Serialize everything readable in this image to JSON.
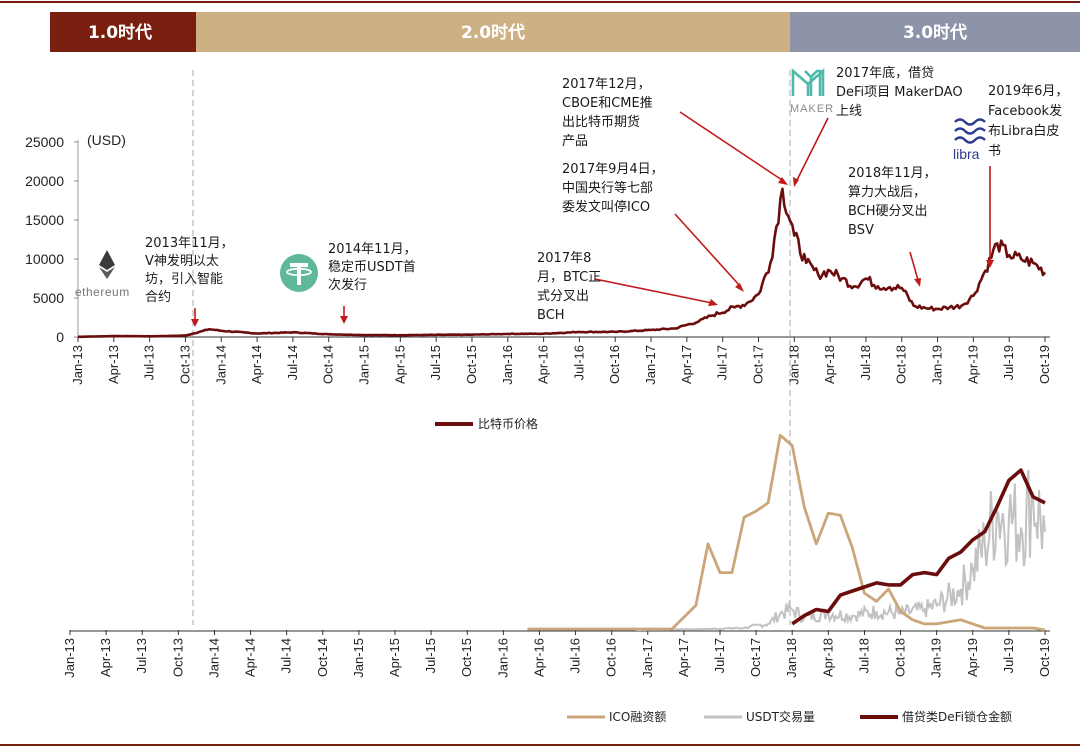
{
  "eras": [
    {
      "label": "1.0时代",
      "start": "2013-01",
      "end": "2013-11",
      "color": "#7a1f0f"
    },
    {
      "label": "2.0时代",
      "start": "2013-11",
      "end": "2018-01",
      "color": "#cdb083"
    },
    {
      "label": "3.0时代",
      "start": "2018-01",
      "end": "2019-10",
      "color": "#8d93a8"
    }
  ],
  "colors": {
    "bitcoin": "#6b0d0d",
    "ico": "#caa679",
    "usdt": "#c2c2c2",
    "defi": "#6b0d0d",
    "annotation_arrow": "#c01a1a",
    "divider": "#b0b0b0",
    "tether": "#5fb898",
    "maker": "#4fb8aa",
    "libra": "#2b3c8f",
    "border": "#7a1f0f"
  },
  "icons": {
    "ethereum": "ethereum-icon",
    "tether": "tether-icon",
    "maker": "maker-icon",
    "libra": "libra-icon"
  },
  "logo_text": {
    "ethereum": "ethereum",
    "maker": "MAKER",
    "libra": "libra"
  },
  "annotations": [
    {
      "date": "2013-11",
      "lines": [
        "2013年11月，",
        "V神发明以太",
        "坊，引入智能",
        "合约"
      ]
    },
    {
      "date": "2014-11",
      "lines": [
        "2014年11月，",
        "稳定币USDT首",
        "次发行"
      ]
    },
    {
      "date": "2017-08",
      "lines": [
        "2017年8",
        "月，BTC正",
        "式分叉出",
        "BCH"
      ]
    },
    {
      "date": "2017-09",
      "lines": [
        "2017年9月4日，",
        "中国央行等七部",
        "委发文叫停ICO"
      ]
    },
    {
      "date": "2017-12",
      "lines": [
        "2017年12月，",
        "CBOE和CME推",
        "出比特币期货",
        "产品"
      ]
    },
    {
      "date": "2017-12",
      "lines": [
        "2017年底，借贷",
        "DeFi项目 MakerDAO",
        "上线"
      ]
    },
    {
      "date": "2018-11",
      "lines": [
        "2018年11月，",
        "算力大战后，",
        "BCH硬分叉出",
        "BSV"
      ]
    },
    {
      "date": "2019-06",
      "lines": [
        "2019年6月，",
        "Facebook发",
        "布Libra白皮",
        "书"
      ]
    }
  ],
  "chart_data": [
    {
      "type": "line",
      "ylabel": "(USD)",
      "ylim": [
        0,
        25000
      ],
      "yticks": [
        "0",
        "5000",
        "10000",
        "15000",
        "20000",
        "25000"
      ],
      "xticks": [
        "Jan-13",
        "Apr-13",
        "Jul-13",
        "Oct-13",
        "Jan-14",
        "Apr-14",
        "Jul-14",
        "Oct-14",
        "Jan-15",
        "Apr-15",
        "Jul-15",
        "Oct-15",
        "Jan-16",
        "Apr-16",
        "Jul-16",
        "Oct-16",
        "Jan-17",
        "Apr-17",
        "Jul-17",
        "Oct-17",
        "Jan-18",
        "Apr-18",
        "Jul-18",
        "Oct-18",
        "Jan-19",
        "Apr-19",
        "Jul-19",
        "Oct-19"
      ],
      "legend_position": "bottom",
      "series": [
        {
          "name": "比特币价格",
          "x": [
            "2013-01",
            "2013-04",
            "2013-07",
            "2013-10",
            "2013-12",
            "2014-01",
            "2014-04",
            "2014-07",
            "2014-10",
            "2015-01",
            "2015-04",
            "2015-07",
            "2015-10",
            "2016-01",
            "2016-04",
            "2016-07",
            "2016-10",
            "2017-01",
            "2017-03",
            "2017-05",
            "2017-06",
            "2017-08",
            "2017-09",
            "2017-10",
            "2017-11",
            "2017-12",
            "2018-01",
            "2018-02",
            "2018-03",
            "2018-04",
            "2018-05",
            "2018-06",
            "2018-07",
            "2018-08",
            "2018-09",
            "2018-10",
            "2018-11",
            "2018-12",
            "2019-01",
            "2019-02",
            "2019-03",
            "2019-04",
            "2019-05",
            "2019-06",
            "2019-07",
            "2019-08",
            "2019-09",
            "2019-10"
          ],
          "values": [
            20,
            120,
            90,
            180,
            1000,
            800,
            450,
            600,
            350,
            250,
            230,
            280,
            300,
            400,
            420,
            650,
            650,
            900,
            1100,
            2000,
            2700,
            3800,
            4300,
            5500,
            9500,
            19000,
            13000,
            9500,
            8000,
            8500,
            7500,
            6500,
            7500,
            6500,
            6400,
            6300,
            4000,
            3700,
            3600,
            3800,
            4000,
            5300,
            8500,
            12000,
            10500,
            10000,
            9500,
            8300
          ]
        }
      ]
    },
    {
      "type": "line",
      "xticks": [
        "Jan-13",
        "Apr-13",
        "Jul-13",
        "Oct-13",
        "Jan-14",
        "Apr-14",
        "Jul-14",
        "Oct-14",
        "Jan-15",
        "Apr-15",
        "Jul-15",
        "Oct-15",
        "Jan-16",
        "Apr-16",
        "Jul-16",
        "Oct-16",
        "Jan-17",
        "Apr-17",
        "Jul-17",
        "Oct-17",
        "Jan-18",
        "Apr-18",
        "Jul-18",
        "Oct-18",
        "Jan-19",
        "Apr-19",
        "Jul-19",
        "Oct-19"
      ],
      "legend_position": "bottom",
      "ylim": [
        0,
        100
      ],
      "series": [
        {
          "name": "ICO融资额",
          "x": [
            "2016-03",
            "2016-06",
            "2016-09",
            "2016-12",
            "2017-03",
            "2017-05",
            "2017-06",
            "2017-07",
            "2017-08",
            "2017-09",
            "2017-10",
            "2017-11",
            "2017-12",
            "2018-01",
            "2018-02",
            "2018-03",
            "2018-04",
            "2018-05",
            "2018-06",
            "2018-07",
            "2018-08",
            "2018-09",
            "2018-10",
            "2018-11",
            "2018-12",
            "2019-01",
            "2019-03",
            "2019-05",
            "2019-07",
            "2019-09",
            "2019-10"
          ],
          "values": [
            0.5,
            0.5,
            0.5,
            0.5,
            0.5,
            12,
            42,
            28,
            28,
            55,
            58,
            62,
            95,
            90,
            60,
            42,
            57,
            56,
            40,
            18,
            14,
            20,
            9,
            5,
            3,
            3,
            5,
            1,
            1,
            1,
            0
          ]
        },
        {
          "name": "USDT交易量",
          "x": [
            "2016-12",
            "2017-06",
            "2017-09",
            "2017-11",
            "2017-12",
            "2018-01",
            "2018-02",
            "2018-04",
            "2018-06",
            "2018-08",
            "2018-10",
            "2018-12",
            "2019-01",
            "2019-03",
            "2019-04",
            "2019-05",
            "2019-06",
            "2019-07",
            "2019-08",
            "2019-09",
            "2019-10"
          ],
          "values": [
            0,
            0.5,
            1,
            3,
            8,
            10,
            6,
            8,
            7,
            9,
            8,
            10,
            12,
            20,
            30,
            42,
            58,
            55,
            50,
            65,
            48
          ]
        },
        {
          "name": "借贷类DeFi锁仓金额",
          "x": [
            "2018-01",
            "2018-02",
            "2018-03",
            "2018-04",
            "2018-05",
            "2018-06",
            "2018-07",
            "2018-08",
            "2018-09",
            "2018-10",
            "2018-11",
            "2018-12",
            "2019-01",
            "2019-02",
            "2019-03",
            "2019-04",
            "2019-05",
            "2019-06",
            "2019-07",
            "2019-08",
            "2019-09",
            "2019-10"
          ],
          "values": [
            3,
            7,
            10,
            9,
            17,
            19,
            21,
            23,
            22,
            22,
            27,
            28,
            27,
            35,
            38,
            44,
            48,
            60,
            73,
            78,
            65,
            62
          ]
        }
      ]
    }
  ]
}
